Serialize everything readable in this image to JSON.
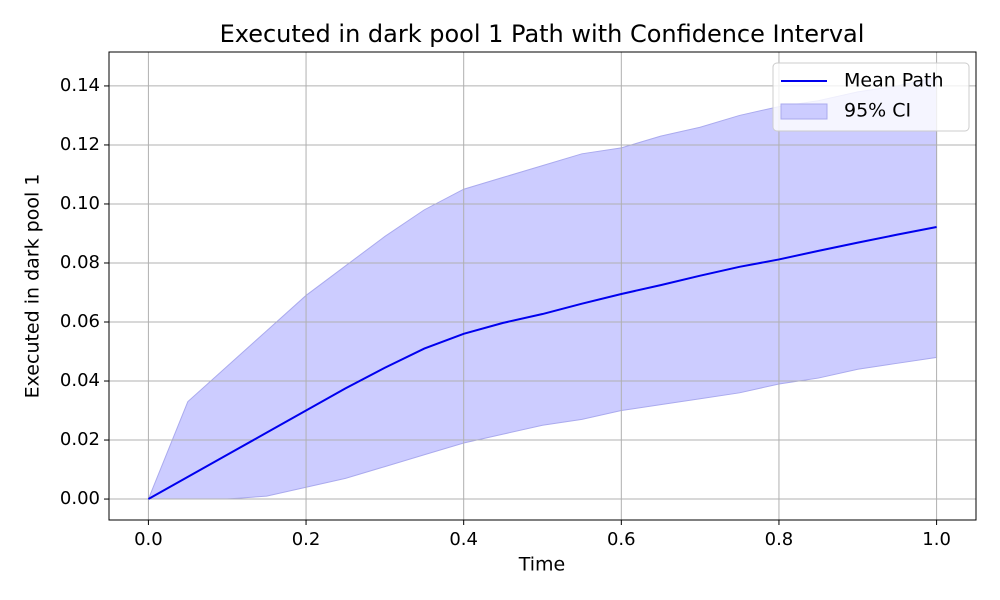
{
  "chart_data": {
    "type": "line",
    "title": "Executed in dark pool 1 Path with Confidence Interval",
    "x_label": "Time",
    "y_label": "Executed in dark pool 1",
    "x": [
      0,
      0.05,
      0.1,
      0.15,
      0.2,
      0.25,
      0.3,
      0.35,
      0.4,
      0.45,
      0.5,
      0.55,
      0.6,
      0.65,
      0.7,
      0.75,
      0.8,
      0.85,
      0.9,
      0.95,
      1.0
    ],
    "series": [
      {
        "name": "Mean Path",
        "color": "#0000ee",
        "values": [
          0,
          0.0075,
          0.015,
          0.0225,
          0.03,
          0.0375,
          0.0445,
          0.051,
          0.056,
          0.0597,
          0.0627,
          0.0662,
          0.0695,
          0.0725,
          0.0757,
          0.0787,
          0.0812,
          0.0841,
          0.0869,
          0.0896,
          0.0922
        ]
      }
    ],
    "band": {
      "name": "95% CI",
      "color": "#ccccff",
      "edge_color": "#aaaaee",
      "lower": [
        0,
        0,
        0,
        0.001,
        0.004,
        0.007,
        0.011,
        0.015,
        0.019,
        0.022,
        0.025,
        0.027,
        0.03,
        0.032,
        0.034,
        0.036,
        0.039,
        0.041,
        0.044,
        0.046,
        0.048
      ],
      "upper": [
        0,
        0.033,
        0.045,
        0.057,
        0.069,
        0.079,
        0.089,
        0.098,
        0.105,
        0.109,
        0.113,
        0.117,
        0.119,
        0.123,
        0.126,
        0.13,
        0.133,
        0.135,
        0.138,
        0.14,
        0.143
      ]
    },
    "xlim": [
      -0.05,
      1.05
    ],
    "ylim": [
      -0.0071,
      0.1515
    ],
    "xticks": [
      {
        "value": 0,
        "label": "0.0"
      },
      0.2,
      0.4,
      0.6,
      0.8,
      {
        "value": 1,
        "label": "1.0"
      }
    ],
    "yticks": [
      {
        "value": 0,
        "label": "0.00"
      },
      0.02,
      0.04,
      0.06,
      0.08,
      {
        "value": 0.1,
        "label": "0.10"
      },
      0.12,
      0.14
    ],
    "grid": true,
    "legend_loc": "upper right"
  }
}
